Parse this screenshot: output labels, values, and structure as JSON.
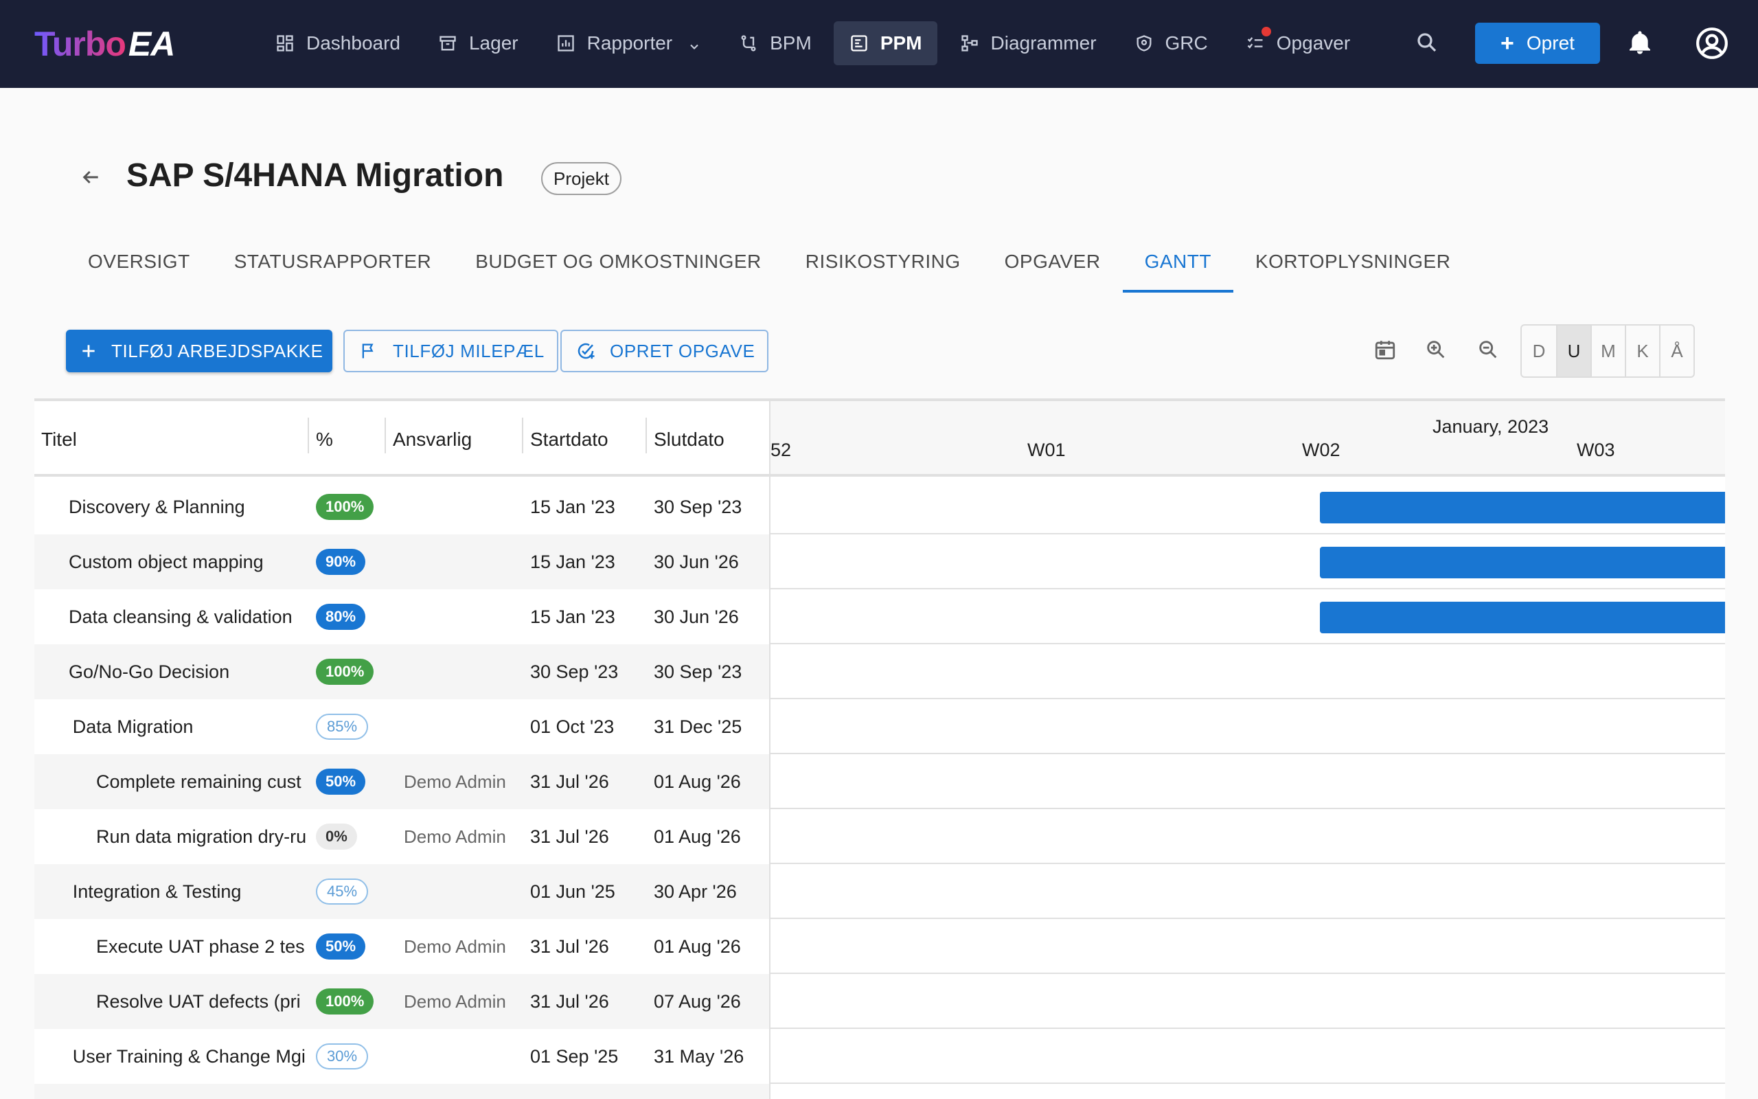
{
  "app": {
    "logo_turbo": "Turbo",
    "logo_ea": "EA"
  },
  "nav": {
    "items": [
      {
        "label": "Dashboard",
        "icon": "dashboard-icon"
      },
      {
        "label": "Lager",
        "icon": "archive-icon"
      },
      {
        "label": "Rapporter",
        "icon": "report-icon"
      },
      {
        "label": "BPM",
        "icon": "process-icon"
      },
      {
        "label": "PPM",
        "icon": "project-icon"
      },
      {
        "label": "Diagrammer",
        "icon": "diagram-icon"
      },
      {
        "label": "GRC",
        "icon": "shield-icon"
      },
      {
        "label": "Opgaver",
        "icon": "tasks-icon"
      }
    ],
    "create_label": "Opret"
  },
  "project": {
    "title": "SAP S/4HANA Migration",
    "type_chip": "Projekt"
  },
  "tabs": [
    "OVERSIGT",
    "STATUSRAPPORTER",
    "BUDGET OG OMKOSTNINGER",
    "RISIKOSTYRING",
    "OPGAVER",
    "GANTT",
    "KORTOPLYSNINGER"
  ],
  "toolbar": {
    "add_workpackage": "TILFØJ ARBEJDSPAKKE",
    "add_milestone": "TILFØJ MILEPÆL",
    "create_task": "OPRET OPGAVE",
    "scales": [
      "D",
      "U",
      "M",
      "K",
      "Å"
    ],
    "active_scale": "U"
  },
  "gantt": {
    "columns": {
      "title": "Titel",
      "percent": "%",
      "owner": "Ansvarlig",
      "start": "Startdato",
      "end": "Slutdato"
    },
    "timeline": {
      "month": "January, 2023",
      "weeks": [
        "52",
        "W01",
        "W02",
        "W03"
      ]
    },
    "rows": [
      {
        "title": "Discovery & Planning",
        "pct": "100%",
        "owner": "",
        "start": "15 Jan '23",
        "end": "30 Sep '23"
      },
      {
        "title": "Custom object mapping",
        "pct": "90%",
        "owner": "",
        "start": "15 Jan '23",
        "end": "30 Jun '26"
      },
      {
        "title": "Data cleansing & validation",
        "pct": "80%",
        "owner": "",
        "start": "15 Jan '23",
        "end": "30 Jun '26"
      },
      {
        "title": "Go/No-Go Decision",
        "pct": "100%",
        "owner": "",
        "start": "30 Sep '23",
        "end": "30 Sep '23"
      },
      {
        "title": "Data Migration",
        "pct": "85%",
        "owner": "",
        "start": "01 Oct '23",
        "end": "31 Dec '25"
      },
      {
        "title": "Complete remaining cust",
        "pct": "50%",
        "owner": "Demo Admin",
        "start": "31 Jul '26",
        "end": "01 Aug '26"
      },
      {
        "title": "Run data migration dry-ru",
        "pct": "0%",
        "owner": "Demo Admin",
        "start": "31 Jul '26",
        "end": "01 Aug '26"
      },
      {
        "title": "Integration & Testing",
        "pct": "45%",
        "owner": "",
        "start": "01 Jun '25",
        "end": "30 Apr '26"
      },
      {
        "title": "Execute UAT phase 2 tes",
        "pct": "50%",
        "owner": "Demo Admin",
        "start": "31 Jul '26",
        "end": "01 Aug '26"
      },
      {
        "title": "Resolve UAT defects (pri",
        "pct": "100%",
        "owner": "Demo Admin",
        "start": "31 Jul '26",
        "end": "07 Aug '26"
      },
      {
        "title": "User Training & Change Mgi",
        "pct": "30%",
        "owner": "",
        "start": "01 Sep '25",
        "end": "31 May '26"
      }
    ]
  },
  "colors": {
    "nav_bg": "#1a1f36",
    "accent": "#1976d2",
    "success": "#43a047"
  }
}
